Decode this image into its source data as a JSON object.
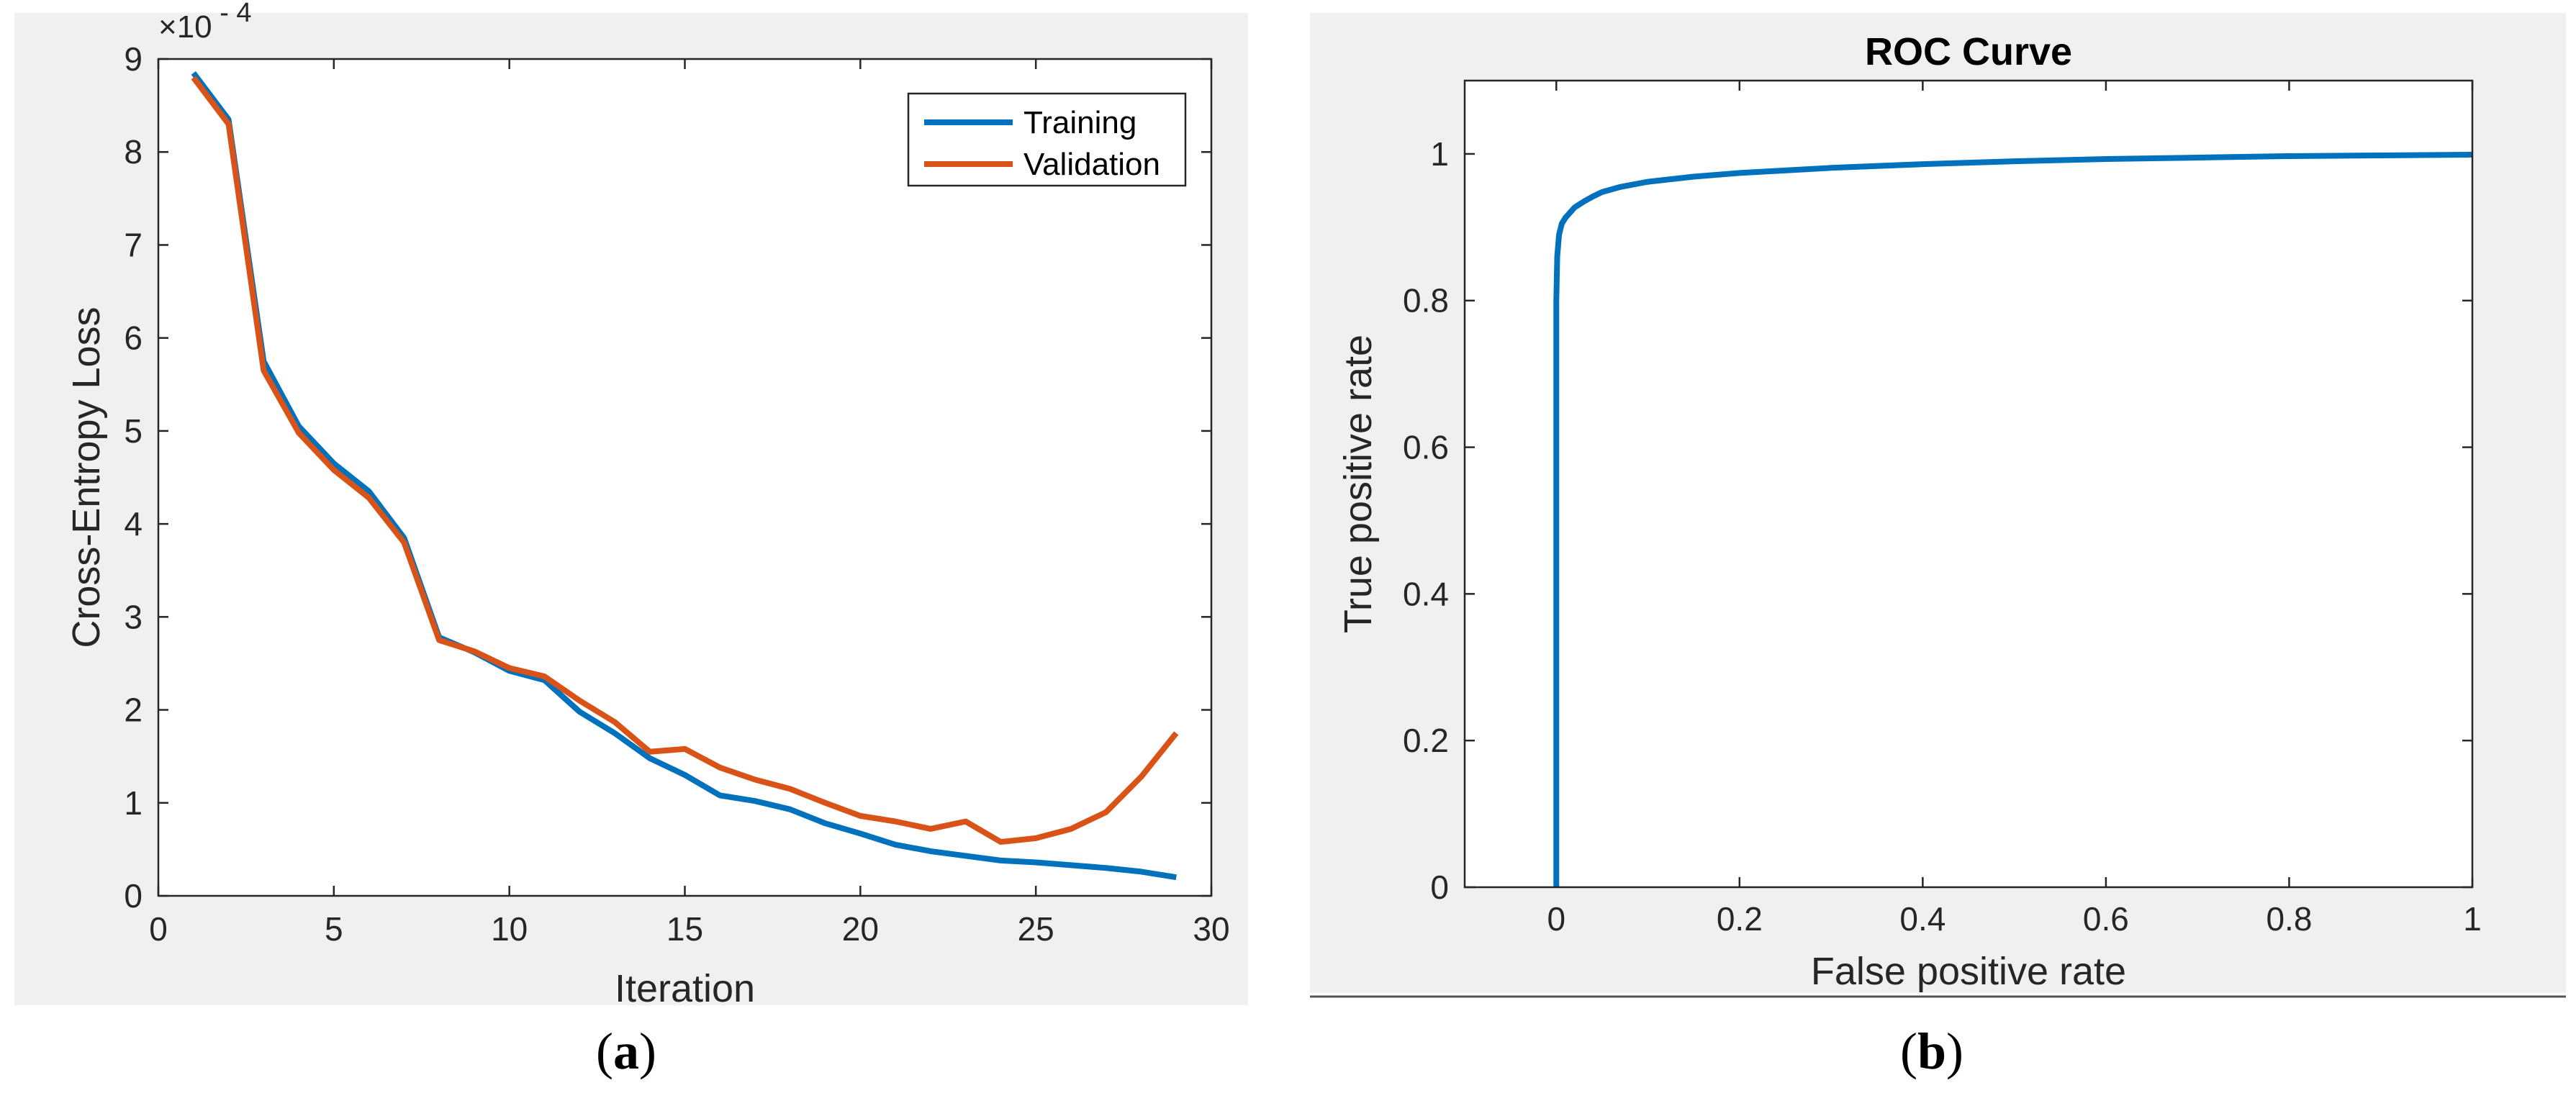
{
  "chart_data": [
    {
      "type": "line",
      "panel_label": "a",
      "xlabel": "Iteration",
      "ylabel": "Cross-Entropy Loss",
      "y_exponent_label": "×10",
      "y_exponent": "- 4",
      "xlim": [
        0,
        30
      ],
      "ylim": [
        0,
        9
      ],
      "xticks": [
        0,
        5,
        10,
        15,
        20,
        25,
        30
      ],
      "yticks": [
        0,
        1,
        2,
        3,
        4,
        5,
        6,
        7,
        8,
        9
      ],
      "legend_position": "top-right",
      "x": [
        1,
        2,
        3,
        4,
        5,
        6,
        7,
        8,
        9,
        10,
        11,
        12,
        13,
        14,
        15,
        16,
        17,
        18,
        19,
        20,
        21,
        22,
        23,
        24,
        25,
        26,
        27,
        28,
        29
      ],
      "series": [
        {
          "name": "Training",
          "color": "#0072BD",
          "values": [
            8.85,
            8.35,
            5.75,
            5.05,
            4.65,
            4.35,
            3.85,
            2.78,
            2.62,
            2.42,
            2.32,
            1.98,
            1.75,
            1.48,
            1.3,
            1.08,
            1.02,
            0.93,
            0.78,
            0.67,
            0.55,
            0.48,
            0.43,
            0.38,
            0.36,
            0.33,
            0.3,
            0.26,
            0.2
          ]
        },
        {
          "name": "Validation",
          "color": "#D95319",
          "values": [
            8.8,
            8.3,
            5.65,
            4.98,
            4.58,
            4.28,
            3.8,
            2.75,
            2.63,
            2.45,
            2.36,
            2.1,
            1.87,
            1.55,
            1.58,
            1.38,
            1.25,
            1.15,
            1.0,
            0.86,
            0.8,
            0.72,
            0.8,
            0.58,
            0.62,
            0.72,
            0.9,
            1.28,
            1.75
          ]
        }
      ]
    },
    {
      "type": "line",
      "panel_label": "b",
      "title": "ROC Curve",
      "xlabel": "False positive rate",
      "ylabel": "True positive rate",
      "xlim": [
        -0.1,
        1
      ],
      "ylim": [
        0,
        1.1
      ],
      "xticks": [
        0,
        0.2,
        0.4,
        0.6,
        0.8,
        1
      ],
      "xtick_labels": [
        "0",
        "0.2",
        "0.4",
        "0.6",
        "0.8",
        "1"
      ],
      "yticks": [
        0,
        0.2,
        0.4,
        0.6,
        0.8,
        1
      ],
      "ytick_labels": [
        "0",
        "0.2",
        "0.4",
        "0.6",
        "0.8",
        "1"
      ],
      "series": [
        {
          "name": "ROC",
          "color": "#0072BD",
          "x": [
            0,
            0,
            0.001,
            0.003,
            0.006,
            0.01,
            0.015,
            0.02,
            0.03,
            0.04,
            0.05,
            0.07,
            0.1,
            0.15,
            0.2,
            0.3,
            0.4,
            0.5,
            0.6,
            0.7,
            0.8,
            0.9,
            1.0
          ],
          "y": [
            0,
            0.8,
            0.86,
            0.89,
            0.905,
            0.913,
            0.92,
            0.927,
            0.935,
            0.942,
            0.948,
            0.955,
            0.962,
            0.969,
            0.974,
            0.981,
            0.986,
            0.99,
            0.993,
            0.995,
            0.997,
            0.998,
            0.999
          ]
        }
      ]
    }
  ]
}
